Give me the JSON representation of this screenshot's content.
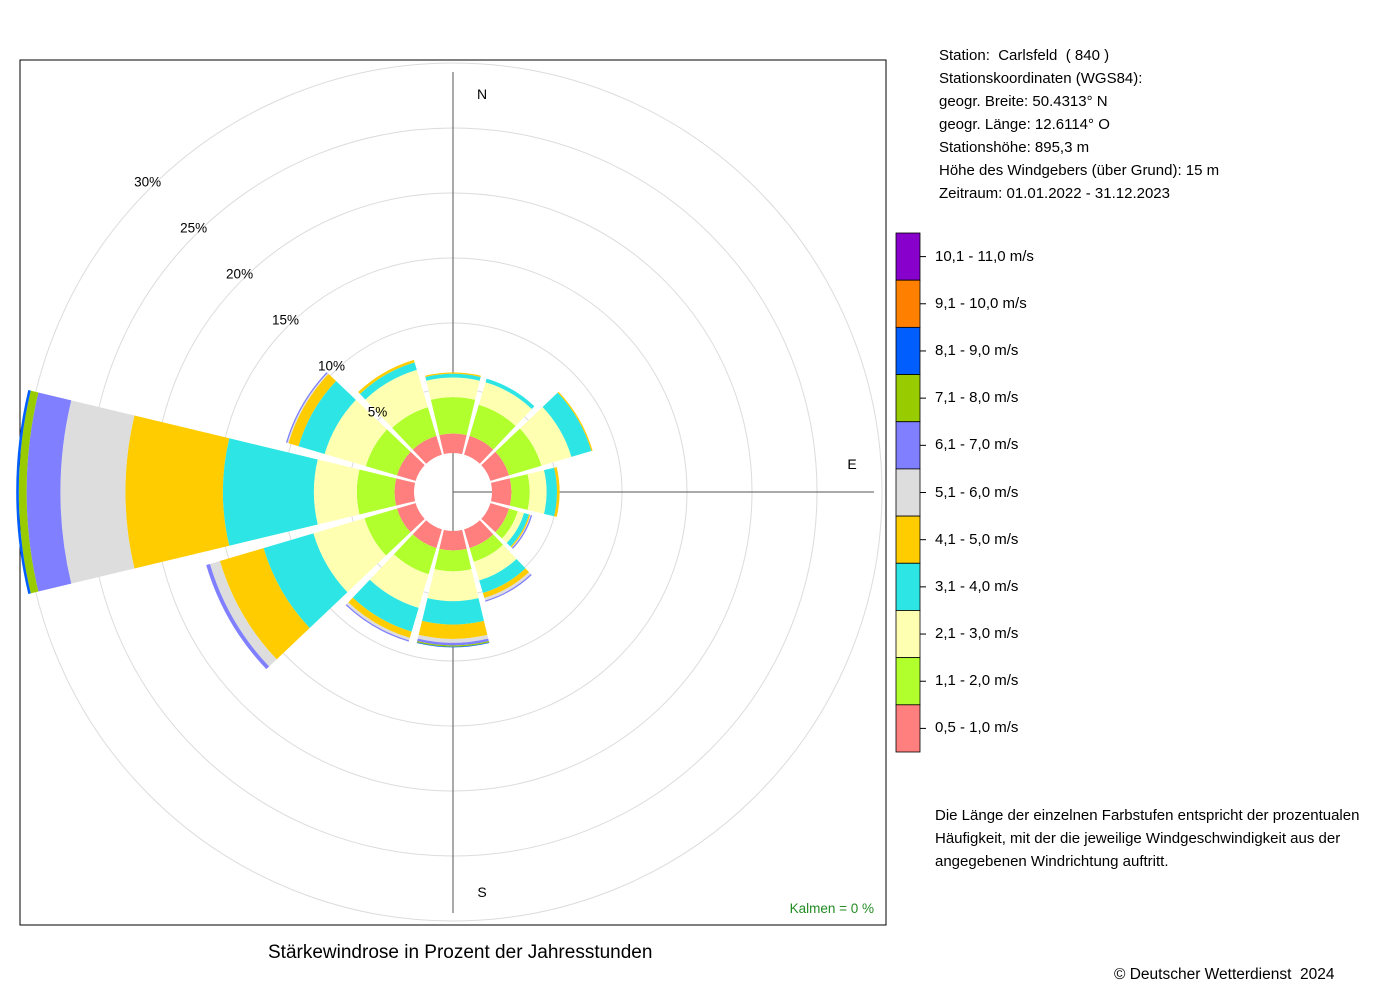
{
  "station_info": [
    "Station:  Carlsfeld  ( 840 )",
    "Stationskoordinaten (WGS84):",
    "geogr. Breite: 50.4313° N",
    "geogr. Länge: 12.6114° O",
    "Stationshöhe: 895,3 m",
    "Höhe des Windgebers (über Grund): 15 m",
    "Zeitraum: 01.01.2022 - 31.12.2023"
  ],
  "note": [
    "Die Länge der einzelnen Farbstufen entspricht der prozentualen",
    "Häufigkeit, mit der die jeweilige Windgeschwindigkeit aus der",
    "angegebenen Windrichtung auftritt."
  ],
  "caption": "Stärkewindrose in Prozent der Jahresstunden",
  "copyright": "© Deutscher Wetterdienst  2024",
  "calm": "Kalmen  =  0 %",
  "chart_data": {
    "type": "wind-rose",
    "title": "Stärkewindrose in Prozent der Jahresstunden",
    "compass_labels": [
      "N",
      "E",
      "S"
    ],
    "ring_labels": [
      "5%",
      "10%",
      "15%",
      "20%",
      "25%",
      "30%"
    ],
    "ring_values": [
      5,
      10,
      15,
      20,
      25,
      30
    ],
    "directions_deg": [
      0,
      30,
      60,
      90,
      120,
      150,
      180,
      210,
      240,
      270,
      300,
      330
    ],
    "classes": [
      {
        "label": "0,5 - 1,0 m/s",
        "color": "#FF7F7F"
      },
      {
        "label": "1,1 - 2,0 m/s",
        "color": "#B2FF2E"
      },
      {
        "label": "2,1 - 3,0 m/s",
        "color": "#FFFFB2"
      },
      {
        "label": "3,1 - 4,0 m/s",
        "color": "#2EE5E5"
      },
      {
        "label": "4,1 - 5,0 m/s",
        "color": "#FFCC00"
      },
      {
        "label": "5,1 - 6,0 m/s",
        "color": "#DDDDDD"
      },
      {
        "label": "6,1 - 7,0 m/s",
        "color": "#7F7FFF"
      },
      {
        "label": "7,1 - 8,0 m/s",
        "color": "#99CC00"
      },
      {
        "label": "8,1 - 9,0 m/s",
        "color": "#005EFF"
      },
      {
        "label": "9,1 - 10,0 m/s",
        "color": "#FF8000"
      },
      {
        "label": "10,1 - 11,0 m/s",
        "color": "#8800CC"
      }
    ],
    "series": [
      {
        "dir": 0,
        "values": [
          1.5,
          2.8,
          1.5,
          0.3,
          0.1,
          0.0,
          0.0,
          0.0,
          0.0,
          0.0,
          0.0
        ]
      },
      {
        "dir": 30,
        "values": [
          1.5,
          2.5,
          1.8,
          0.3,
          0.0,
          0.0,
          0.0,
          0.0,
          0.0,
          0.0,
          0.0
        ]
      },
      {
        "dir": 60,
        "values": [
          1.5,
          2.6,
          2.4,
          1.6,
          0.1,
          0.0,
          0.0,
          0.0,
          0.0,
          0.0,
          0.0
        ]
      },
      {
        "dir": 90,
        "values": [
          1.5,
          1.4,
          1.3,
          0.8,
          0.2,
          0.0,
          0.0,
          0.0,
          0.0,
          0.0,
          0.0
        ]
      },
      {
        "dir": 120,
        "values": [
          1.5,
          0.7,
          0.5,
          0.4,
          0.1,
          0.05,
          0.1,
          0.0,
          0.0,
          0.0,
          0.0
        ]
      },
      {
        "dir": 150,
        "values": [
          1.5,
          1.1,
          1.5,
          1.0,
          0.4,
          0.2,
          0.1,
          0.0,
          0.0,
          0.0,
          0.0
        ]
      },
      {
        "dir": 180,
        "values": [
          1.5,
          1.6,
          2.3,
          1.8,
          1.1,
          0.3,
          0.2,
          0.1,
          0.05,
          0.0,
          0.0
        ]
      },
      {
        "dir": 210,
        "values": [
          1.5,
          2.1,
          2.7,
          1.9,
          0.5,
          0.2,
          0.1,
          0.0,
          0.0,
          0.0,
          0.0
        ]
      },
      {
        "dir": 240,
        "values": [
          1.5,
          2.6,
          4.1,
          4.0,
          3.5,
          0.8,
          0.3,
          0.0,
          0.0,
          0.0,
          0.0
        ]
      },
      {
        "dir": 270,
        "values": [
          1.5,
          2.9,
          3.3,
          7.0,
          7.5,
          5.0,
          2.6,
          0.6,
          0.2,
          0.0,
          0.0
        ]
      },
      {
        "dir": 300,
        "values": [
          1.5,
          2.5,
          3.3,
          2.1,
          0.8,
          0.1,
          0.1,
          0.0,
          0.0,
          0.0,
          0.0
        ]
      },
      {
        "dir": 330,
        "values": [
          1.5,
          2.3,
          3.0,
          0.6,
          0.2,
          0.0,
          0.0,
          0.0,
          0.0,
          0.0,
          0.0
        ]
      }
    ],
    "calm_percent": 0,
    "grid": true
  }
}
